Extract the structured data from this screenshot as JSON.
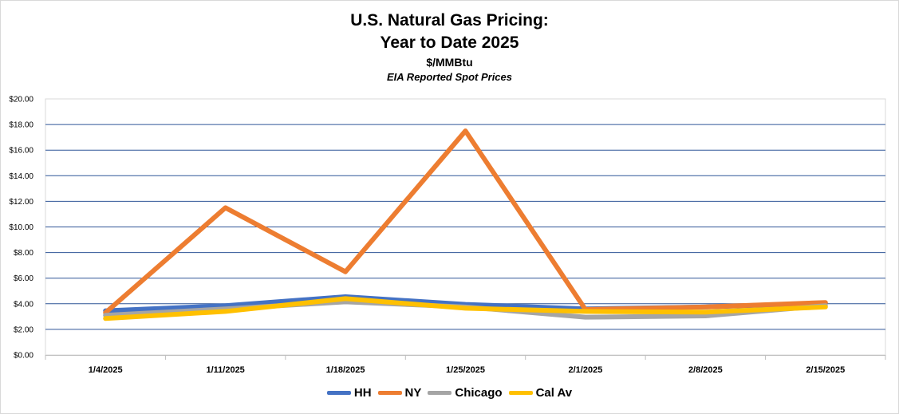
{
  "titles": {
    "line1": "U.S. Natural Gas Pricing:",
    "line2": "Year to Date 2025",
    "unit": "$/MMBtu",
    "source": "EIA Reported Spot Prices"
  },
  "chart_data": {
    "type": "line",
    "title": "U.S. Natural Gas Pricing: Year to Date 2025",
    "subtitle": "$/MMBtu — EIA Reported Spot Prices",
    "xlabel": "",
    "ylabel": "",
    "ylim": [
      0,
      20
    ],
    "y_ticks": [
      "$0.00",
      "$2.00",
      "$4.00",
      "$6.00",
      "$8.00",
      "$10.00",
      "$12.00",
      "$14.00",
      "$16.00",
      "$18.00",
      "$20.00"
    ],
    "grid": true,
    "legend": "bottom",
    "categories": [
      "1/4/2025",
      "1/11/2025",
      "1/18/2025",
      "1/25/2025",
      "2/1/2025",
      "2/8/2025",
      "2/15/2025"
    ],
    "series": [
      {
        "name": "HH",
        "color": "#4472C4",
        "values": [
          3.45,
          3.85,
          4.55,
          3.95,
          3.6,
          3.75,
          4.05
        ]
      },
      {
        "name": "NY",
        "color": "#ED7D31",
        "values": [
          3.3,
          11.5,
          6.5,
          17.5,
          3.55,
          3.75,
          4.1
        ]
      },
      {
        "name": "Chicago",
        "color": "#A5A5A5",
        "values": [
          3.1,
          3.6,
          4.15,
          3.75,
          2.95,
          3.05,
          3.85
        ]
      },
      {
        "name": "Cal Av",
        "color": "#FFC000",
        "values": [
          2.85,
          3.4,
          4.4,
          3.65,
          3.4,
          3.35,
          3.75
        ]
      }
    ]
  }
}
